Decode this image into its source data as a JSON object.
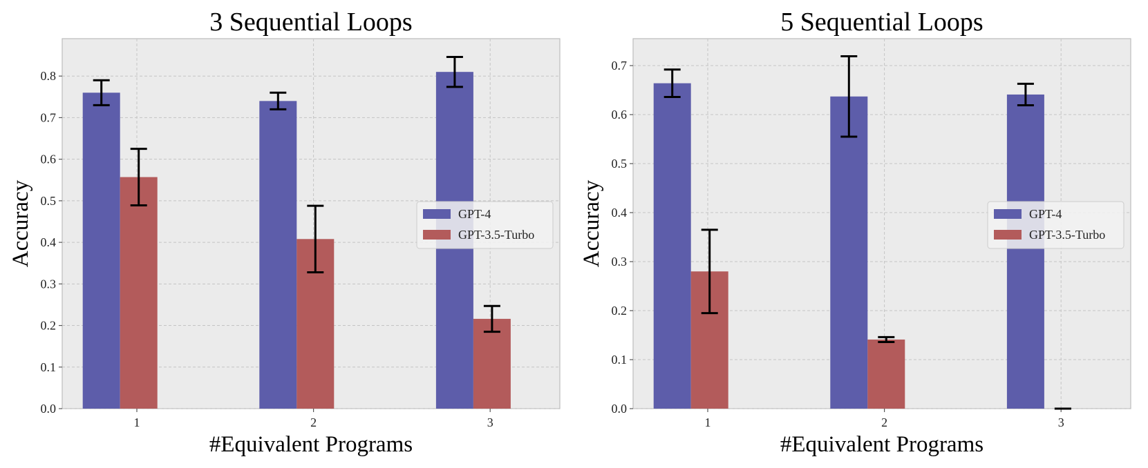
{
  "colors": {
    "gpt4": "#5d5daa",
    "gpt35": "#b35b5b",
    "error_bar": "#000000"
  },
  "chart_data": [
    {
      "type": "bar",
      "title": "3 Sequential Loops",
      "xlabel": "#Equivalent Programs",
      "ylabel": "Accuracy",
      "categories": [
        "1",
        "2",
        "3"
      ],
      "ylim": [
        0,
        0.89
      ],
      "yticks": [
        "0.0",
        "0.1",
        "0.2",
        "0.3",
        "0.4",
        "0.5",
        "0.6",
        "0.7",
        "0.8"
      ],
      "grid": true,
      "legend_position": "center-right",
      "series": [
        {
          "name": "GPT-4",
          "values": [
            0.76,
            0.74,
            0.81
          ],
          "errors": [
            0.03,
            0.02,
            0.036
          ]
        },
        {
          "name": "GPT-3.5-Turbo",
          "values": [
            0.557,
            0.408,
            0.216
          ],
          "errors": [
            0.068,
            0.08,
            0.031
          ]
        }
      ]
    },
    {
      "type": "bar",
      "title": "5 Sequential Loops",
      "xlabel": "#Equivalent Programs",
      "ylabel": "Accuracy",
      "categories": [
        "1",
        "2",
        "3"
      ],
      "ylim": [
        0,
        0.755
      ],
      "yticks": [
        "0.0",
        "0.1",
        "0.2",
        "0.3",
        "0.4",
        "0.5",
        "0.6",
        "0.7"
      ],
      "grid": true,
      "legend_position": "center-right",
      "series": [
        {
          "name": "GPT-4",
          "values": [
            0.664,
            0.637,
            0.641
          ],
          "errors": [
            0.028,
            0.082,
            0.022
          ]
        },
        {
          "name": "GPT-3.5-Turbo",
          "values": [
            0.28,
            0.141,
            0.0
          ],
          "errors": [
            0.085,
            0.005,
            0.0
          ]
        }
      ]
    }
  ]
}
